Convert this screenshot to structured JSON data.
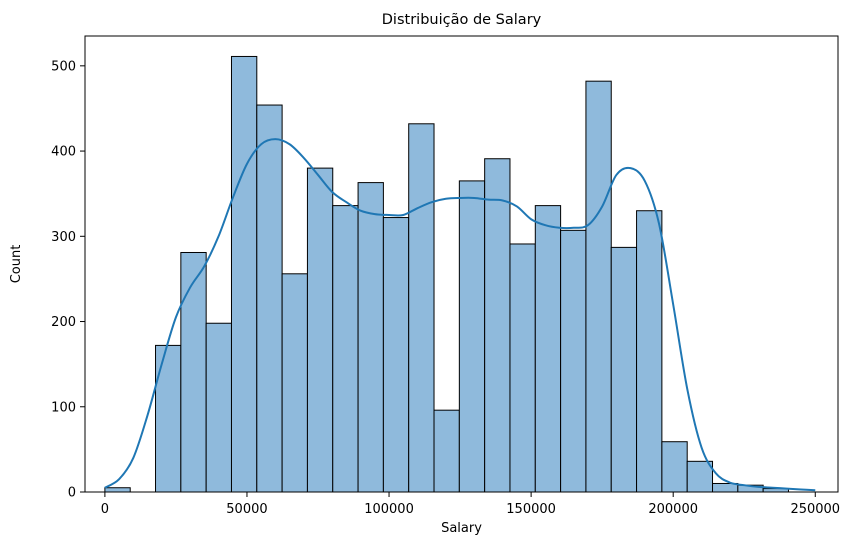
{
  "chart_data": {
    "type": "bar",
    "subtype": "histogram-with-kde",
    "title": "Distribuição de Salary",
    "xlabel": "Salary",
    "ylabel": "Count",
    "xlim": [
      -7000,
      258000
    ],
    "ylim": [
      0,
      535
    ],
    "xticks": [
      0,
      50000,
      100000,
      150000,
      200000,
      250000
    ],
    "yticks": [
      0,
      100,
      200,
      300,
      400,
      500
    ],
    "grid": false,
    "bin_width": 8910,
    "bins": [
      {
        "x0": 0,
        "x1": 8910,
        "count": 5
      },
      {
        "x0": 8910,
        "x1": 17820,
        "count": 0
      },
      {
        "x0": 17820,
        "x1": 26730,
        "count": 172
      },
      {
        "x0": 26730,
        "x1": 35640,
        "count": 281
      },
      {
        "x0": 35640,
        "x1": 44550,
        "count": 198
      },
      {
        "x0": 44550,
        "x1": 53460,
        "count": 511
      },
      {
        "x0": 53460,
        "x1": 62370,
        "count": 454
      },
      {
        "x0": 62370,
        "x1": 71280,
        "count": 256
      },
      {
        "x0": 71280,
        "x1": 80190,
        "count": 380
      },
      {
        "x0": 80190,
        "x1": 89100,
        "count": 336
      },
      {
        "x0": 89100,
        "x1": 98010,
        "count": 363
      },
      {
        "x0": 98010,
        "x1": 106920,
        "count": 322
      },
      {
        "x0": 106920,
        "x1": 115830,
        "count": 432
      },
      {
        "x0": 115830,
        "x1": 124740,
        "count": 96
      },
      {
        "x0": 124740,
        "x1": 133650,
        "count": 365
      },
      {
        "x0": 133650,
        "x1": 142560,
        "count": 391
      },
      {
        "x0": 142560,
        "x1": 151470,
        "count": 291
      },
      {
        "x0": 151470,
        "x1": 160380,
        "count": 336
      },
      {
        "x0": 160380,
        "x1": 169290,
        "count": 307
      },
      {
        "x0": 169290,
        "x1": 178200,
        "count": 482
      },
      {
        "x0": 178200,
        "x1": 187110,
        "count": 287
      },
      {
        "x0": 187110,
        "x1": 196020,
        "count": 330
      },
      {
        "x0": 196020,
        "x1": 204930,
        "count": 59
      },
      {
        "x0": 204930,
        "x1": 213840,
        "count": 36
      },
      {
        "x0": 213840,
        "x1": 222750,
        "count": 10
      },
      {
        "x0": 222750,
        "x1": 231660,
        "count": 8
      },
      {
        "x0": 231660,
        "x1": 240570,
        "count": 4
      }
    ],
    "kde": {
      "x": [
        0,
        5000,
        10000,
        15000,
        20000,
        25000,
        30000,
        35000,
        40000,
        45000,
        50000,
        55000,
        60000,
        65000,
        70000,
        75000,
        80000,
        85000,
        90000,
        95000,
        100000,
        105000,
        110000,
        115000,
        120000,
        125000,
        130000,
        135000,
        140000,
        145000,
        150000,
        155000,
        160000,
        165000,
        170000,
        175000,
        180000,
        185000,
        190000,
        195000,
        200000,
        205000,
        210000,
        215000,
        220000,
        225000,
        230000,
        235000,
        240000,
        245000,
        250000
      ],
      "y": [
        5,
        15,
        40,
        90,
        150,
        205,
        240,
        265,
        300,
        345,
        385,
        408,
        414,
        408,
        392,
        372,
        352,
        340,
        330,
        326,
        325,
        325,
        333,
        340,
        344,
        345,
        345,
        343,
        342,
        335,
        320,
        313,
        310,
        310,
        313,
        335,
        372,
        380,
        365,
        315,
        220,
        120,
        52,
        22,
        11,
        8,
        6,
        5,
        4,
        3,
        2
      ]
    },
    "colors": {
      "bar_fill": "#8fbadc",
      "bar_edge": "#000000",
      "kde_line": "#1f77b4"
    }
  }
}
